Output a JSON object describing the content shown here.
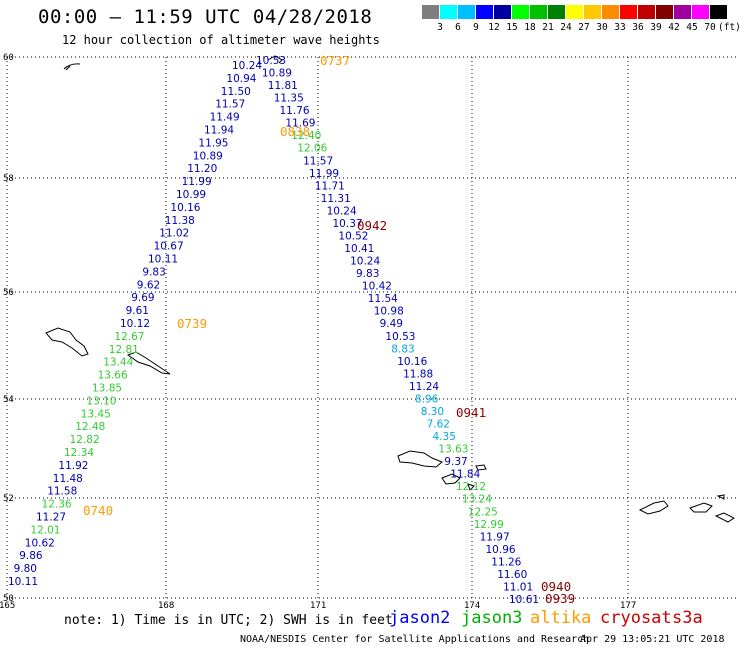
{
  "header": {
    "title": "00:00 – 11:59 UTC 04/28/2018",
    "subtitle": "12 hour collection of altimeter wave heights"
  },
  "colorbar": {
    "colors": [
      "#7f7f7f",
      "#00ffff",
      "#00bfff",
      "#0000ff",
      "#0000a0",
      "#00ff00",
      "#00c000",
      "#008000",
      "#ffff00",
      "#ffc800",
      "#ff8c00",
      "#ff0000",
      "#c00000",
      "#800000",
      "#a000a0",
      "#ff00ff",
      "#000000"
    ],
    "labels": [
      "3",
      "6",
      "9",
      "12",
      "15",
      "18",
      "21",
      "24",
      "27",
      "30",
      "33",
      "36",
      "39",
      "42",
      "45",
      "70",
      "(ft)"
    ]
  },
  "axes": {
    "lat_labels": [
      "60",
      "58",
      "56",
      "54",
      "52",
      "50"
    ],
    "lon_labels": [
      "165",
      "168",
      "171",
      "174",
      "177"
    ]
  },
  "colors": {
    "dark_blue": "#0000b0",
    "cyan": "#00a8d8",
    "green": "#33cc33",
    "orange": "#ff9900",
    "dark_red": "#8b0000"
  },
  "times": [
    {
      "text": "0737",
      "color": "orange"
    },
    {
      "text": "0838",
      "color": "orange"
    },
    {
      "text": "0739",
      "color": "orange"
    },
    {
      "text": "0740",
      "color": "orange"
    },
    {
      "text": "0942",
      "color": "dark_red"
    },
    {
      "text": "0941",
      "color": "dark_red"
    },
    {
      "text": "0940",
      "color": "dark_red"
    },
    {
      "text": "0939",
      "color": "dark_red"
    }
  ],
  "track_west": [
    {
      "v": "10.24",
      "c": "dark_blue"
    },
    {
      "v": "10.94",
      "c": "dark_blue"
    },
    {
      "v": "11.50",
      "c": "dark_blue"
    },
    {
      "v": "11.57",
      "c": "dark_blue"
    },
    {
      "v": "11.49",
      "c": "dark_blue"
    },
    {
      "v": "11.94",
      "c": "dark_blue"
    },
    {
      "v": "11.95",
      "c": "dark_blue"
    },
    {
      "v": "10.89",
      "c": "dark_blue"
    },
    {
      "v": "11.20",
      "c": "dark_blue"
    },
    {
      "v": "11.99",
      "c": "dark_blue"
    },
    {
      "v": "10.99",
      "c": "dark_blue"
    },
    {
      "v": "10.16",
      "c": "dark_blue"
    },
    {
      "v": "11.38",
      "c": "dark_blue"
    },
    {
      "v": "11.02",
      "c": "dark_blue"
    },
    {
      "v": "10.67",
      "c": "dark_blue"
    },
    {
      "v": "10.11",
      "c": "dark_blue"
    },
    {
      "v": "9.83",
      "c": "dark_blue"
    },
    {
      "v": "9.62",
      "c": "dark_blue"
    },
    {
      "v": "9.69",
      "c": "dark_blue"
    },
    {
      "v": "9.61",
      "c": "dark_blue"
    },
    {
      "v": "10.12",
      "c": "dark_blue"
    },
    {
      "v": "12.67",
      "c": "green"
    },
    {
      "v": "12.81",
      "c": "green"
    },
    {
      "v": "13.44",
      "c": "green"
    },
    {
      "v": "13.66",
      "c": "green"
    },
    {
      "v": "13.85",
      "c": "green"
    },
    {
      "v": "13.10",
      "c": "green"
    },
    {
      "v": "13.45",
      "c": "green"
    },
    {
      "v": "12.48",
      "c": "green"
    },
    {
      "v": "12.82",
      "c": "green"
    },
    {
      "v": "12.34",
      "c": "green"
    },
    {
      "v": "11.92",
      "c": "dark_blue"
    },
    {
      "v": "11.48",
      "c": "dark_blue"
    },
    {
      "v": "11.58",
      "c": "dark_blue"
    },
    {
      "v": "12.36",
      "c": "green"
    },
    {
      "v": "11.27",
      "c": "dark_blue"
    },
    {
      "v": "12.01",
      "c": "green"
    },
    {
      "v": "10.62",
      "c": "dark_blue"
    },
    {
      "v": "9.86",
      "c": "dark_blue"
    },
    {
      "v": "9.80",
      "c": "dark_blue"
    },
    {
      "v": "10.11",
      "c": "dark_blue"
    }
  ],
  "track_east": [
    {
      "v": "10.53",
      "c": "dark_blue"
    },
    {
      "v": "10.89",
      "c": "dark_blue"
    },
    {
      "v": "11.81",
      "c": "dark_blue"
    },
    {
      "v": "11.35",
      "c": "dark_blue"
    },
    {
      "v": "11.76",
      "c": "dark_blue"
    },
    {
      "v": "11.69",
      "c": "dark_blue"
    },
    {
      "v": "12.40",
      "c": "green"
    },
    {
      "v": "12.06",
      "c": "green"
    },
    {
      "v": "11.57",
      "c": "dark_blue"
    },
    {
      "v": "11.99",
      "c": "dark_blue"
    },
    {
      "v": "11.71",
      "c": "dark_blue"
    },
    {
      "v": "11.31",
      "c": "dark_blue"
    },
    {
      "v": "10.24",
      "c": "dark_blue"
    },
    {
      "v": "10.37",
      "c": "dark_blue"
    },
    {
      "v": "10.52",
      "c": "dark_blue"
    },
    {
      "v": "10.41",
      "c": "dark_blue"
    },
    {
      "v": "10.24",
      "c": "dark_blue"
    },
    {
      "v": "9.83",
      "c": "dark_blue"
    },
    {
      "v": "10.42",
      "c": "dark_blue"
    },
    {
      "v": "11.54",
      "c": "dark_blue"
    },
    {
      "v": "10.98",
      "c": "dark_blue"
    },
    {
      "v": "9.49",
      "c": "dark_blue"
    },
    {
      "v": "10.53",
      "c": "dark_blue"
    },
    {
      "v": "8.83",
      "c": "cyan"
    },
    {
      "v": "10.16",
      "c": "dark_blue"
    },
    {
      "v": "11.88",
      "c": "dark_blue"
    },
    {
      "v": "11.24",
      "c": "dark_blue"
    },
    {
      "v": "8.96",
      "c": "cyan"
    },
    {
      "v": "8.30",
      "c": "cyan"
    },
    {
      "v": "7.62",
      "c": "cyan"
    },
    {
      "v": "4.35",
      "c": "cyan"
    },
    {
      "v": "13.63",
      "c": "green"
    },
    {
      "v": "9.37",
      "c": "dark_blue"
    },
    {
      "v": "11.84",
      "c": "dark_blue"
    },
    {
      "v": "12.12",
      "c": "green"
    },
    {
      "v": "13.24",
      "c": "green"
    },
    {
      "v": "12.25",
      "c": "green"
    },
    {
      "v": "12.99",
      "c": "green"
    },
    {
      "v": "11.97",
      "c": "dark_blue"
    },
    {
      "v": "10.96",
      "c": "dark_blue"
    },
    {
      "v": "11.26",
      "c": "dark_blue"
    },
    {
      "v": "11.60",
      "c": "dark_blue"
    },
    {
      "v": "11.01",
      "c": "dark_blue"
    },
    {
      "v": "10.61",
      "c": "dark_blue"
    }
  ],
  "footer": {
    "note": "note: 1) Time is in UTC; 2) SWH is in feet",
    "sat_jason2": "jason2",
    "sat_jason3": "jason3",
    "sat_altika": "altika",
    "sat_cryosat": "cryosat",
    "sat_s3a": "s3a",
    "credit": "NOAA/NESDIS Center for Satellite Applications and Research",
    "stamp": "Apr 29 13:05:21 UTC 2018"
  }
}
